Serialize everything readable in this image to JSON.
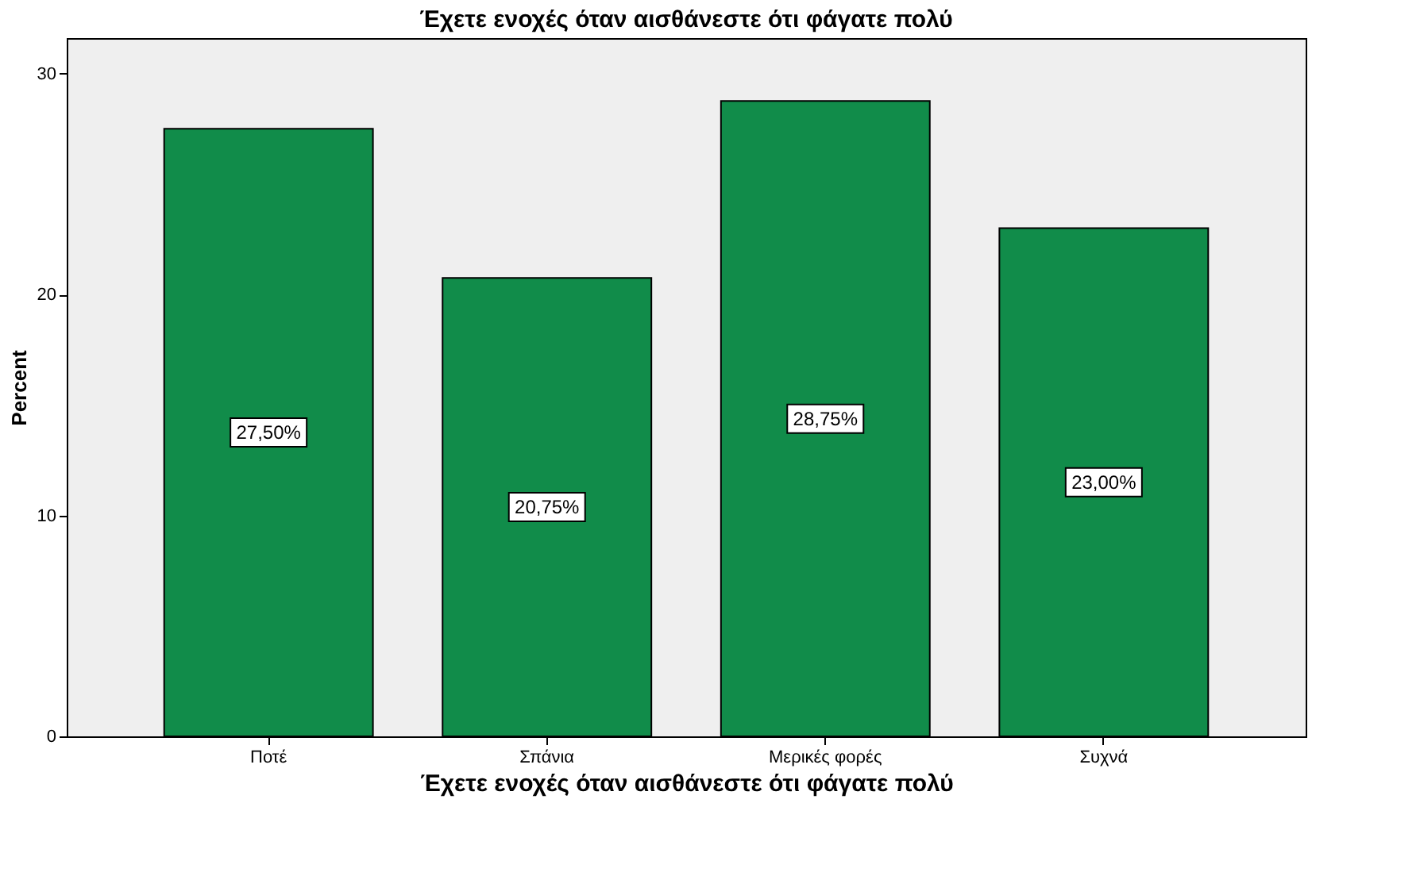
{
  "chart_data": {
    "type": "bar",
    "title": "Έχετε ενοχές όταν αισθάνεστε ότι φάγατε πολύ",
    "xlabel": "Έχετε ενοχές όταν αισθάνεστε ότι φάγατε πολύ",
    "ylabel": "Percent",
    "categories": [
      "Ποτέ",
      "Σπάνια",
      "Μερικές φορές",
      "Συχνά"
    ],
    "values": [
      27.5,
      20.75,
      28.75,
      23.0
    ],
    "value_labels": [
      "27,50%",
      "20,75%",
      "28,75%",
      "23,00%"
    ],
    "color": "#118c4a",
    "ylim": [
      0,
      31.6
    ],
    "yticks": [
      0,
      10,
      20,
      30
    ],
    "grid": false
  }
}
